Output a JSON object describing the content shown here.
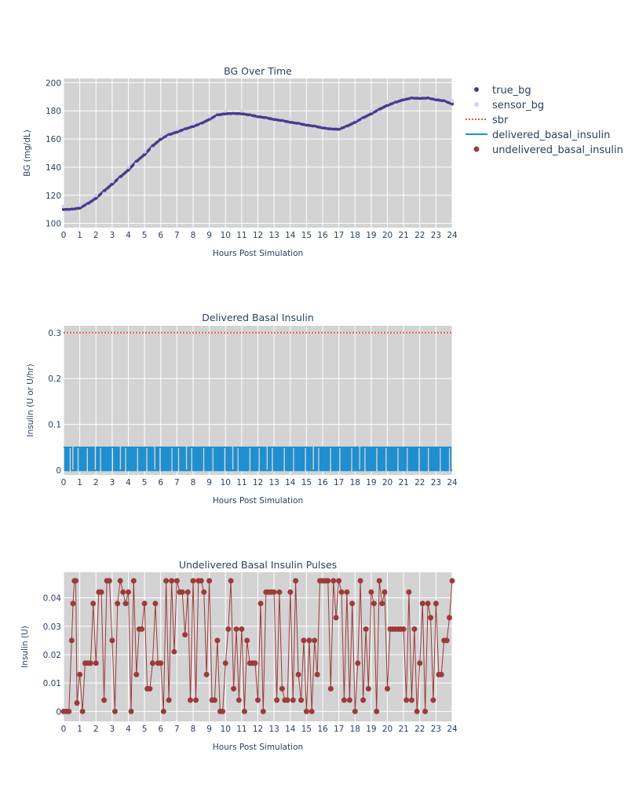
{
  "chart_data": [
    {
      "type": "line",
      "title": "BG Over Time",
      "xlabel": "Hours Post Simulation",
      "ylabel": "BG (mg/dL)",
      "xlim": [
        0,
        24
      ],
      "ylim": [
        97,
        203
      ],
      "xticks": [
        0,
        1,
        2,
        3,
        4,
        5,
        6,
        7,
        8,
        9,
        10,
        11,
        12,
        13,
        14,
        15,
        16,
        17,
        18,
        19,
        20,
        21,
        22,
        23,
        24
      ],
      "yticks": [
        100,
        120,
        140,
        160,
        180,
        200
      ],
      "grid": true,
      "series": [
        {
          "name": "true_bg",
          "style": "markers",
          "color": "#4a3a8c",
          "x": [
            0,
            0.5,
            1,
            1.5,
            2,
            2.5,
            3,
            3.5,
            4,
            4.5,
            5,
            5.5,
            6,
            6.5,
            7,
            7.5,
            8,
            8.5,
            9,
            9.5,
            10,
            10.5,
            11,
            11.5,
            12,
            12.5,
            13,
            13.5,
            14,
            14.5,
            15,
            15.5,
            16,
            16.5,
            17,
            17.5,
            18,
            18.5,
            19,
            19.5,
            20,
            20.5,
            21,
            21.5,
            22,
            22.5,
            23,
            23.5,
            24
          ],
          "y": [
            110,
            110,
            111,
            114,
            118,
            123,
            128,
            133,
            138,
            144,
            149,
            155,
            160,
            163,
            165,
            167,
            169,
            171,
            174,
            177,
            178,
            178,
            178,
            177,
            176,
            175,
            174,
            173,
            172,
            171,
            170,
            169,
            168,
            167,
            167,
            169,
            172,
            175,
            178,
            181,
            184,
            186,
            188,
            189,
            189,
            189,
            188,
            187,
            185
          ]
        },
        {
          "name": "sensor_bg",
          "style": "markers",
          "color": "#d6d2ee",
          "x": [
            0,
            0.5,
            1,
            1.5,
            2,
            2.5,
            3,
            3.5,
            4,
            4.5,
            5,
            5.5,
            6,
            6.5,
            7,
            7.5,
            8,
            8.5,
            9,
            9.5,
            10,
            10.5,
            11,
            11.5,
            12,
            12.5,
            13,
            13.5,
            14,
            14.5,
            15,
            15.5,
            16,
            16.5,
            17,
            17.5,
            18,
            18.5,
            19,
            19.5,
            20,
            20.5,
            21,
            21.5,
            22,
            22.5,
            23,
            23.5,
            24
          ],
          "y": [
            112,
            108,
            113,
            112,
            120,
            121,
            130,
            131,
            140,
            142,
            151,
            153,
            162,
            161,
            167,
            165,
            171,
            169,
            176,
            175,
            180,
            176,
            180,
            175,
            178,
            173,
            176,
            171,
            174,
            169,
            172,
            167,
            170,
            165,
            169,
            167,
            174,
            173,
            180,
            179,
            186,
            184,
            190,
            187,
            191,
            187,
            190,
            185,
            187
          ]
        }
      ]
    },
    {
      "type": "line",
      "title": "Delivered Basal Insulin",
      "xlabel": "Hours Post Simulation",
      "ylabel": "Insulin (U or U/hr)",
      "xlim": [
        0,
        24
      ],
      "ylim": [
        -0.01,
        0.315
      ],
      "xticks": [
        0,
        1,
        2,
        3,
        4,
        5,
        6,
        7,
        8,
        9,
        10,
        11,
        12,
        13,
        14,
        15,
        16,
        17,
        18,
        19,
        20,
        21,
        22,
        23,
        24
      ],
      "yticks": [
        0,
        0.1,
        0.2,
        0.3
      ],
      "ytick_labels": [
        "0",
        "0.1",
        "0.2",
        "0.3"
      ],
      "grid": true,
      "series": [
        {
          "name": "sbr",
          "style": "dotted",
          "color": "#ef553b",
          "x": [
            0,
            24
          ],
          "y": [
            0.3,
            0.3
          ]
        },
        {
          "name": "delivered_basal_insulin",
          "style": "step",
          "color": "#1f8fd0",
          "values_every_5_min": [
            0.05,
            0,
            0.05,
            0,
            0.05,
            0.05,
            0,
            0,
            0.05,
            0,
            0.05,
            0.05,
            0,
            0.05,
            0,
            0.05,
            0,
            0.05,
            0.05,
            0,
            0.05,
            0,
            0.05,
            0,
            0,
            0.05,
            0,
            0.05,
            0.05,
            0,
            0.05,
            0,
            0.05,
            0,
            0.05,
            0,
            0.05,
            0.05,
            0,
            0.05,
            0,
            0.05,
            0,
            0,
            0.05,
            0,
            0.05,
            0.05,
            0,
            0.05,
            0,
            0.05,
            0,
            0.05,
            0,
            0.05,
            0.05,
            0,
            0.05,
            0,
            0.05,
            0,
            0.05,
            0.05,
            0,
            0.05,
            0,
            0.05,
            0,
            0,
            0.05,
            0,
            0.05,
            0.05,
            0,
            0.05,
            0,
            0.05,
            0,
            0.05,
            0,
            0.05,
            0.05,
            0,
            0.05,
            0,
            0.05,
            0.05,
            0,
            0.05,
            0,
            0.05,
            0,
            0,
            0.05,
            0,
            0.05,
            0.05,
            0,
            0.05,
            0,
            0.05,
            0,
            0.05,
            0,
            0.05,
            0.05,
            0,
            0.05,
            0,
            0.05,
            0,
            0.05,
            0.05,
            0,
            0.05,
            0,
            0.05,
            0,
            0.05,
            0,
            0.05,
            0.05,
            0,
            0.05,
            0,
            0.05,
            0,
            0,
            0.05,
            0,
            0.05,
            0.05,
            0,
            0.05,
            0,
            0.05,
            0,
            0.05,
            0,
            0.05,
            0.05,
            0,
            0.05,
            0,
            0.05,
            0,
            0.05,
            0.05,
            0,
            0.05,
            0,
            0.05,
            0,
            0,
            0.05,
            0,
            0.05,
            0.05,
            0,
            0.05,
            0,
            0.05,
            0,
            0.05,
            0,
            0.05,
            0.05,
            0,
            0.05,
            0,
            0.05,
            0,
            0.05,
            0.05,
            0,
            0.05,
            0,
            0.05,
            0,
            0.05,
            0,
            0.05,
            0.05,
            0,
            0.05,
            0,
            0.05,
            0,
            0,
            0.05,
            0,
            0.05,
            0.05,
            0,
            0.05,
            0,
            0.05,
            0,
            0.05,
            0,
            0.05,
            0.05,
            0,
            0.05,
            0,
            0.05,
            0,
            0.05,
            0.05,
            0,
            0.05,
            0,
            0.05,
            0,
            0.05,
            0,
            0.05,
            0.05,
            0,
            0.05,
            0,
            0.05,
            0,
            0,
            0.05,
            0,
            0.05,
            0.05,
            0,
            0.05,
            0,
            0.05,
            0,
            0.05,
            0,
            0.05,
            0.05,
            0,
            0.05,
            0,
            0.05,
            0,
            0.05,
            0.05,
            0,
            0.05,
            0,
            0.05,
            0,
            0.05,
            0,
            0.05,
            0.05,
            0,
            0.05,
            0,
            0.05,
            0,
            0.05,
            0.05,
            0,
            0.05,
            0,
            0.05,
            0,
            0.05,
            0,
            0.05,
            0.05,
            0,
            0.05,
            0,
            0.05,
            0,
            0.05,
            0.05,
            0,
            0.05,
            0,
            0.05,
            0,
            0.05,
            0,
            0.05,
            0.05,
            0,
            0.05,
            0,
            0.05,
            0,
            0.05,
            0.05,
            0
          ]
        }
      ]
    },
    {
      "type": "line",
      "title": "Undelivered Basal Insulin Pulses",
      "xlabel": "Hours Post Simulation",
      "ylabel": "Insulin (U)",
      "xlim": [
        0,
        24
      ],
      "ylim": [
        -0.0035,
        0.049
      ],
      "xticks": [
        0,
        1,
        2,
        3,
        4,
        5,
        6,
        7,
        8,
        9,
        10,
        11,
        12,
        13,
        14,
        15,
        16,
        17,
        18,
        19,
        20,
        21,
        22,
        23,
        24
      ],
      "yticks": [
        0,
        0.01,
        0.02,
        0.03,
        0.04
      ],
      "ytick_labels": [
        "0",
        "0.01",
        "0.02",
        "0.03",
        "0.04"
      ],
      "grid": true,
      "series": [
        {
          "name": "undelivered_basal_insulin",
          "style": "stem-markers",
          "color": "#9c3b3b",
          "x": [
            0,
            0.17,
            0.33,
            0.5,
            0.58,
            0.67,
            0.75,
            0.83,
            1,
            1.17,
            1.33,
            1.5,
            1.67,
            1.83,
            2,
            2.17,
            2.33,
            2.5,
            2.67,
            2.83,
            3,
            3.17,
            3.33,
            3.5,
            3.67,
            3.83,
            4,
            4.17,
            4.33,
            4.5,
            4.67,
            4.83,
            5,
            5.17,
            5.33,
            5.5,
            5.67,
            5.83,
            6,
            6.17,
            6.33,
            6.5,
            6.67,
            6.83,
            7,
            7.17,
            7.33,
            7.5,
            7.67,
            7.83,
            8,
            8.17,
            8.33,
            8.5,
            8.67,
            8.83,
            9,
            9.17,
            9.33,
            9.5,
            9.67,
            9.83,
            10,
            10.17,
            10.33,
            10.5,
            10.67,
            10.83,
            11,
            11.17,
            11.33,
            11.5,
            11.67,
            11.83,
            12,
            12.17,
            12.33,
            12.5,
            12.67,
            12.83,
            13,
            13.17,
            13.33,
            13.5,
            13.67,
            13.83,
            14,
            14.17,
            14.33,
            14.5,
            14.67,
            14.83,
            15,
            15.17,
            15.33,
            15.5,
            15.67,
            15.83,
            16,
            16.17,
            16.33,
            16.5,
            16.67,
            16.83,
            17,
            17.17,
            17.33,
            17.5,
            17.67,
            17.83,
            18,
            18.17,
            18.33,
            18.5,
            18.67,
            18.83,
            19,
            19.17,
            19.33,
            19.5,
            19.67,
            19.83,
            20,
            20.17,
            20.33,
            20.5,
            20.67,
            20.83,
            21,
            21.17,
            21.33,
            21.5,
            21.67,
            21.83,
            22,
            22.17,
            22.33,
            22.5,
            22.67,
            22.83,
            23,
            23.17,
            23.33,
            23.5,
            23.67,
            23.83,
            24
          ],
          "y": [
            0,
            0,
            0,
            0.025,
            0.038,
            0.046,
            0.046,
            0.003,
            0.013,
            0,
            0.017,
            0.017,
            0.017,
            0.038,
            0.017,
            0.042,
            0.042,
            0.004,
            0.046,
            0.046,
            0.025,
            0,
            0.038,
            0.046,
            0.042,
            0.038,
            0.042,
            0,
            0.046,
            0.013,
            0.029,
            0.029,
            0.038,
            0.008,
            0.008,
            0.017,
            0.038,
            0.017,
            0.017,
            0,
            0.046,
            0.004,
            0.046,
            0.021,
            0.046,
            0.042,
            0.042,
            0.027,
            0.042,
            0.004,
            0.046,
            0.004,
            0.046,
            0.046,
            0.042,
            0.013,
            0.046,
            0.004,
            0.004,
            0.025,
            0,
            0,
            0.017,
            0.029,
            0.046,
            0.008,
            0.029,
            0.004,
            0.029,
            0,
            0.025,
            0.017,
            0.017,
            0.017,
            0.004,
            0.038,
            0,
            0.042,
            0.042,
            0.042,
            0.042,
            0.004,
            0.042,
            0.008,
            0.004,
            0.004,
            0.042,
            0.004,
            0.046,
            0.013,
            0.004,
            0.025,
            0,
            0.025,
            0,
            0.025,
            0.013,
            0.046,
            0.046,
            0.046,
            0.046,
            0.008,
            0.046,
            0.033,
            0.046,
            0.042,
            0.004,
            0.042,
            0.004,
            0.038,
            0,
            0.017,
            0.046,
            0.004,
            0.029,
            0.008,
            0.042,
            0.038,
            0,
            0.046,
            0.038,
            0.042,
            0.008,
            0.029,
            0.029,
            0.029,
            0.029,
            0.029,
            0.029,
            0.004,
            0.042,
            0.004,
            0.029,
            0,
            0.017,
            0.038,
            0,
            0.038,
            0.033,
            0.004,
            0.038,
            0.013,
            0.013,
            0.025,
            0.025,
            0.033,
            0.046
          ]
        }
      ]
    }
  ],
  "legend": {
    "placement": "top-right",
    "items": [
      {
        "label": "true_bg",
        "marker": "dot",
        "color": "#4a3a8c"
      },
      {
        "label": "sensor_bg",
        "marker": "dot",
        "color": "#d6d2ee"
      },
      {
        "label": "sbr",
        "marker": "dotted-line",
        "color": "#ef553b"
      },
      {
        "label": "delivered_basal_insulin",
        "marker": "line",
        "color": "#1f8fd0"
      },
      {
        "label": "undelivered_basal_insulin",
        "marker": "dot",
        "color": "#9c3b3b"
      }
    ]
  },
  "colors": {
    "plot_background": "#d3d3d3",
    "gridline": "#ffffff",
    "text": "#2a3f5f"
  }
}
